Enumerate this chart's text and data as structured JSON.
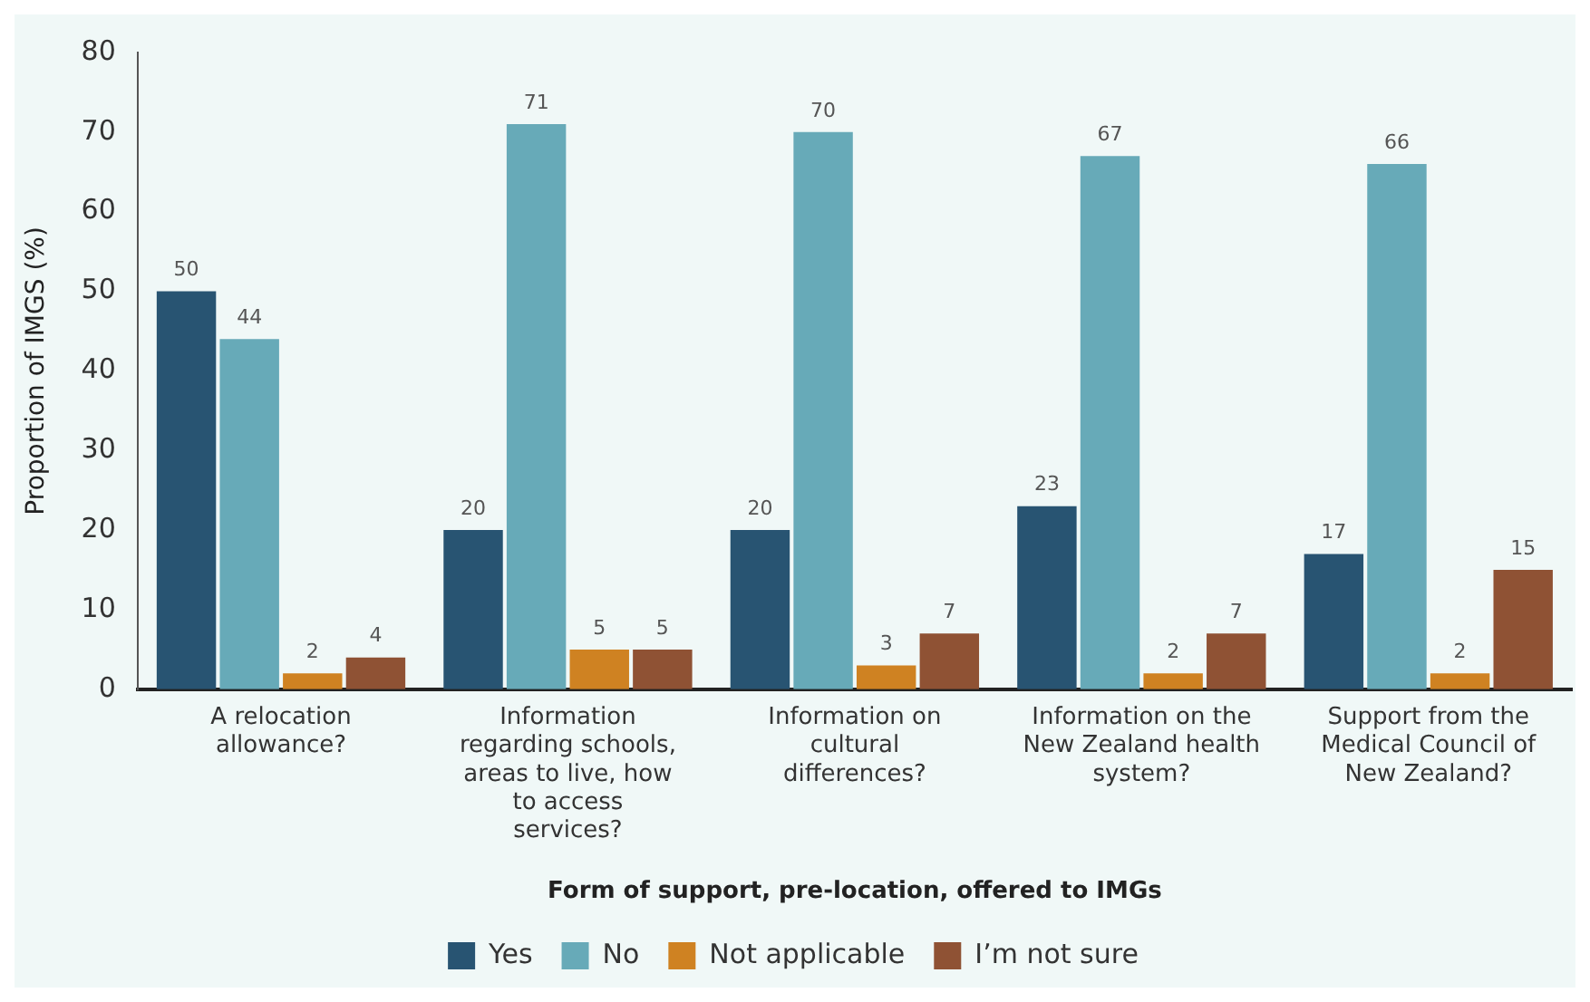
{
  "chart_data": {
    "type": "bar",
    "xlabel": "Form of support, pre-location, offered to IMGs",
    "ylabel": "Proportion of IMGS (%)",
    "categories": [
      "A relocation allowance?",
      "Information regarding schools, areas to live, how to access services?",
      "Information on cultural differences?",
      "Information on the New Zealand health system?",
      "Support from the Medical Council of New Zealand?"
    ],
    "series": [
      {
        "name": "Yes",
        "color": "#285472",
        "values": [
          50,
          20,
          20,
          23,
          17
        ]
      },
      {
        "name": "No",
        "color": "#67aab8",
        "values": [
          44,
          71,
          70,
          67,
          66
        ]
      },
      {
        "name": "Not applicable",
        "color": "#cf8222",
        "values": [
          2,
          5,
          3,
          2,
          2
        ]
      },
      {
        "name": "I’m not sure",
        "color": "#8f5234",
        "values": [
          4,
          5,
          7,
          7,
          15
        ]
      }
    ],
    "ylim": [
      0,
      80
    ],
    "yticks": [
      0,
      10,
      20,
      30,
      40,
      50,
      60,
      70,
      80
    ],
    "grid": false,
    "legend": "bottom",
    "data_labels": true
  }
}
